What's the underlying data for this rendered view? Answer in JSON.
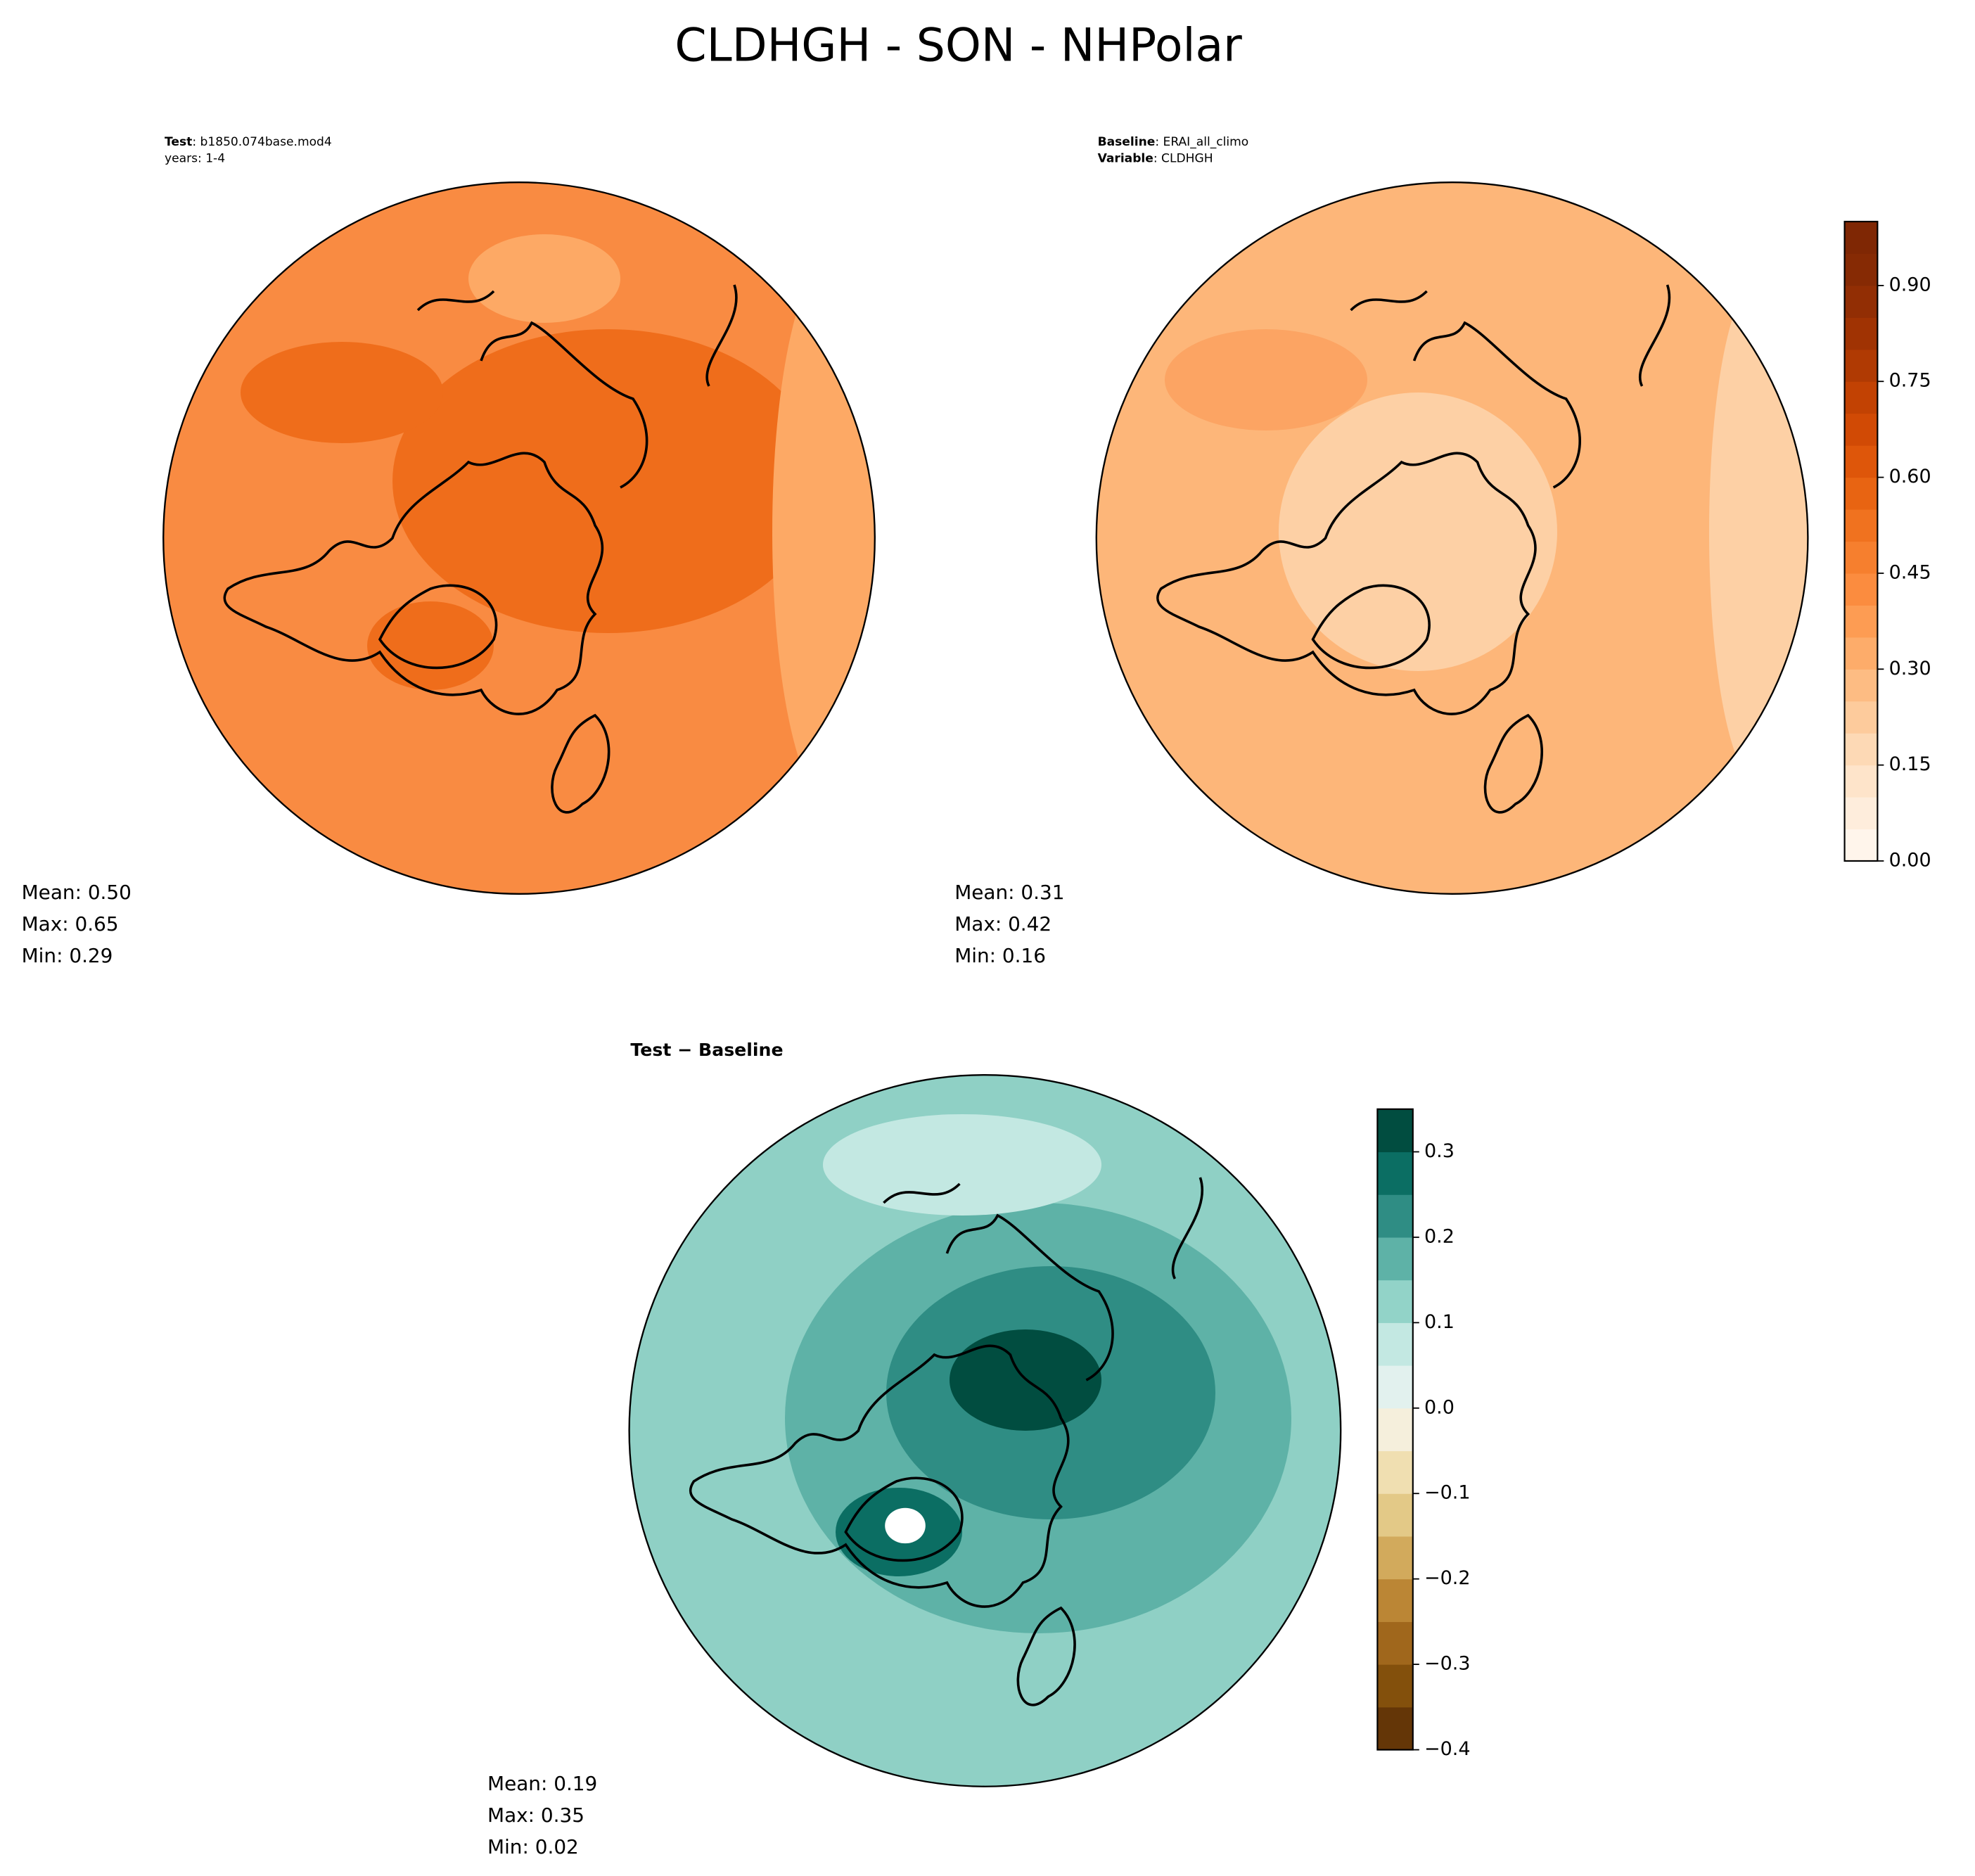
{
  "title": "CLDHGH - SON - NHPolar",
  "panels": [
    {
      "header": [
        {
          "bold": "Test",
          "text": ": b1850.074base.mod4"
        },
        {
          "bold": "",
          "text": "years: 1-4"
        }
      ],
      "stats": [
        "Mean:  0.50",
        "Max:  0.65",
        "Min:  0.29"
      ]
    },
    {
      "header": [
        {
          "bold": "Baseline",
          "text": ": ERAI_all_climo"
        },
        {
          "bold": "Variable",
          "text": ": CLDHGH"
        }
      ],
      "stats": [
        "Mean:  0.31",
        "Max:  0.42",
        "Min:  0.16"
      ]
    },
    {
      "header": [
        {
          "bold": "Test − Baseline",
          "text": ""
        }
      ],
      "stats": [
        "Mean:  0.19",
        "Max:  0.35",
        "Min:  0.02"
      ]
    }
  ],
  "colorbars": [
    {
      "lim": [
        0,
        1
      ],
      "ticks": [
        {
          "value": 0,
          "label": "0.00"
        },
        0.15,
        {
          "value": 0.3,
          "label": "0.30"
        },
        0.45,
        {
          "value": 0.6,
          "label": "0.60"
        },
        0.75,
        {
          "value": 0.9,
          "label": "0.90"
        }
      ],
      "colors": [
        "#fff5eb",
        "#feeddc",
        "#fee4ca",
        "#fdd9b5",
        "#fdcb9c",
        "#fdbc83",
        "#fdac6a",
        "#fd9c53",
        "#fb8c3f",
        "#f67f2e",
        "#f0721f",
        "#e86412",
        "#de560a",
        "#d14a05",
        "#c24203",
        "#b03a03",
        "#a03303",
        "#922e04",
        "#862a04",
        "#7f2704"
      ]
    },
    {
      "lim": [
        -0.4,
        0.35
      ],
      "ticks": [
        {
          "value": -0.4,
          "label": "−0.4"
        },
        {
          "value": -0.3,
          "label": "−0.3"
        },
        {
          "value": -0.2,
          "label": "−0.2"
        },
        {
          "value": -0.1,
          "label": "−0.1"
        },
        {
          "value": 0,
          "label": "0.0"
        },
        0.1,
        0.2,
        0.3
      ],
      "colors": [
        "#643607",
        "#83500c",
        "#a0671c",
        "#bb8635",
        "#d2aa5c",
        "#e3c987",
        "#f0dfb1",
        "#f5efdc",
        "#e2f1ee",
        "#c3e8e2",
        "#92d3c8",
        "#5eb2a7",
        "#2f8d84",
        "#0b6e63",
        "#014d40"
      ]
    }
  ]
}
